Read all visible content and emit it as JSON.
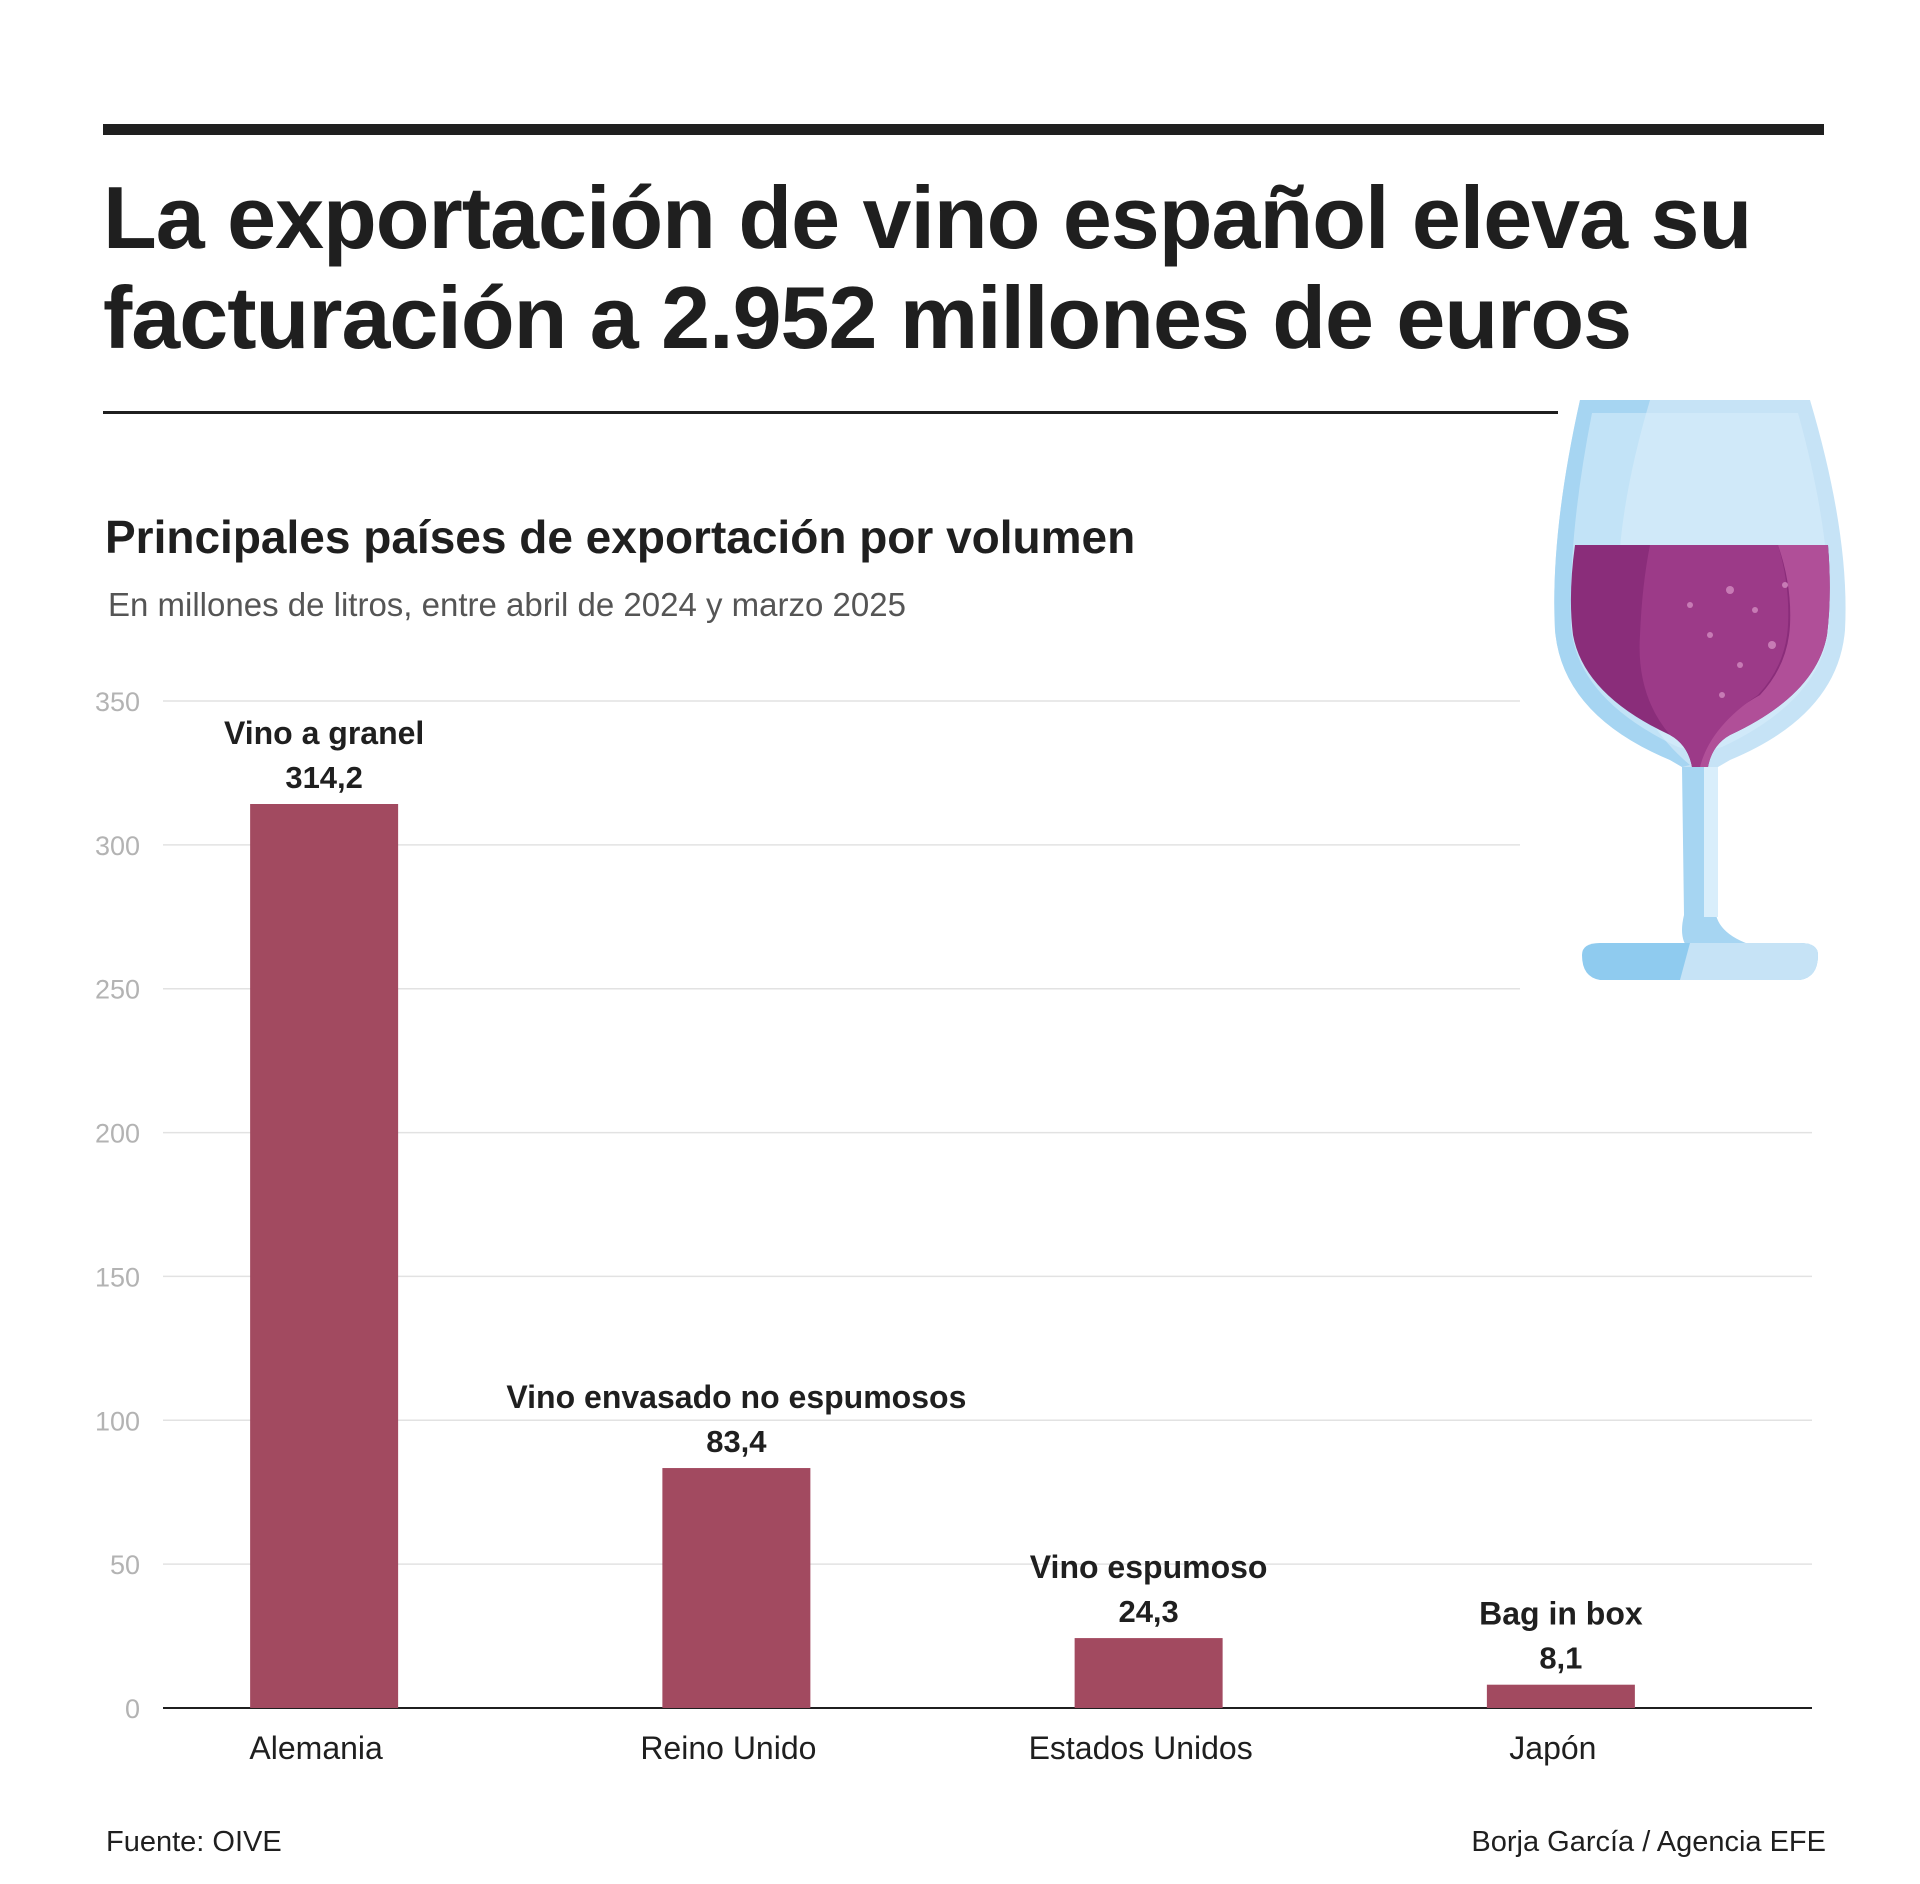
{
  "headline": {
    "line1": "La exportación de vino español eleva su",
    "line2": "facturación a 2.952 millones de euros"
  },
  "chart_data": {
    "type": "bar",
    "title": "Principales países de exportación por volumen",
    "subtitle": "En millones de litros, entre abril de 2024 y marzo 2025",
    "categories": [
      "Alemania",
      "Reino Unido",
      "Estados Unidos",
      "Japón"
    ],
    "values": [
      314.2,
      83.4,
      24.3,
      8.1
    ],
    "value_labels": [
      "314,2",
      "83,4",
      "24,3",
      "8,1"
    ],
    "annotations": [
      "Vino a granel",
      "Vino envasado no espumosos",
      "Vino espumoso",
      "Bag in box"
    ],
    "ylim": [
      0,
      350
    ],
    "yticks": [
      0,
      50,
      100,
      150,
      200,
      250,
      300,
      350
    ],
    "grid": true,
    "bar_color": "#a24a60"
  },
  "footer": {
    "source": "Fuente: OIVE",
    "credit": "Borja García / Agencia EFE"
  },
  "illustration": {
    "icon": "wine-glass-icon"
  }
}
